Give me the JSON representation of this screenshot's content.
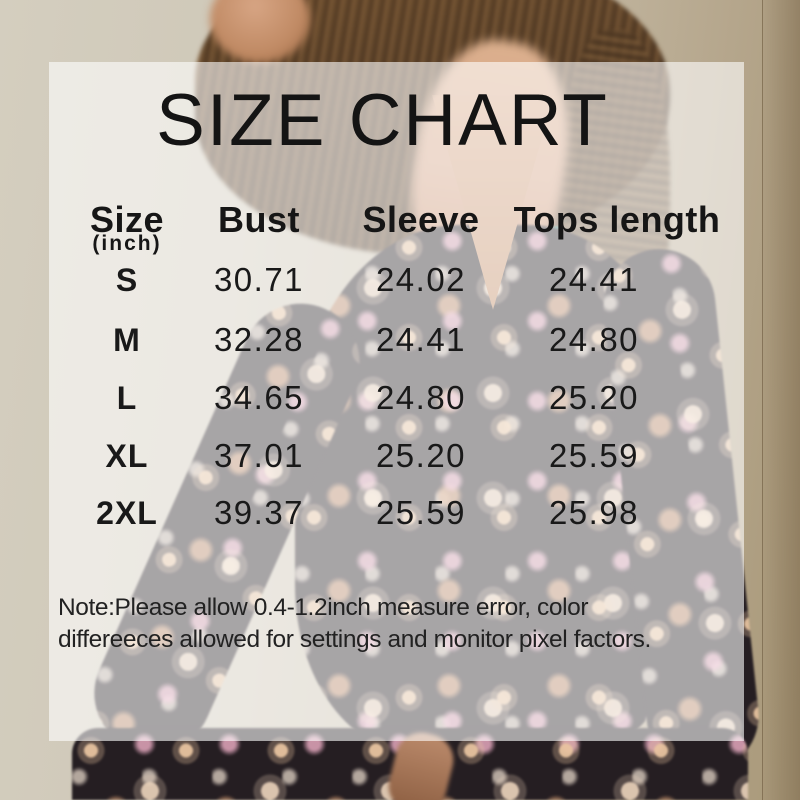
{
  "chart_data": {
    "type": "table",
    "title": "SIZE CHART",
    "unit_label": "(inch)",
    "columns": [
      "Size",
      "Bust",
      "Sleeve",
      "Tops length"
    ],
    "rows": [
      [
        "S",
        "30.71",
        "24.02",
        "24.41"
      ],
      [
        "M",
        "32.28",
        "24.41",
        "24.80"
      ],
      [
        "L",
        "34.65",
        "24.80",
        "25.20"
      ],
      [
        "XL",
        "37.01",
        "25.20",
        "25.59"
      ],
      [
        "2XL",
        "39.37",
        "25.59",
        "25.98"
      ]
    ],
    "note_lines": [
      "Note:Please allow 0.4-1.2inch measure error, color",
      "differeeces allowed for settings and monitor pixel factors."
    ]
  },
  "colors": {
    "overlay": "#FFFFFF",
    "text": "#1A1A1A",
    "wall_left": "#CFC8B8",
    "wall_right": "#A89878",
    "blouse_dark": "#251E22",
    "floral_cream": "#E9C4A0",
    "floral_pink": "#E4A8BE",
    "skin": "#D3A183",
    "hair_brown": "#5A4129"
  }
}
